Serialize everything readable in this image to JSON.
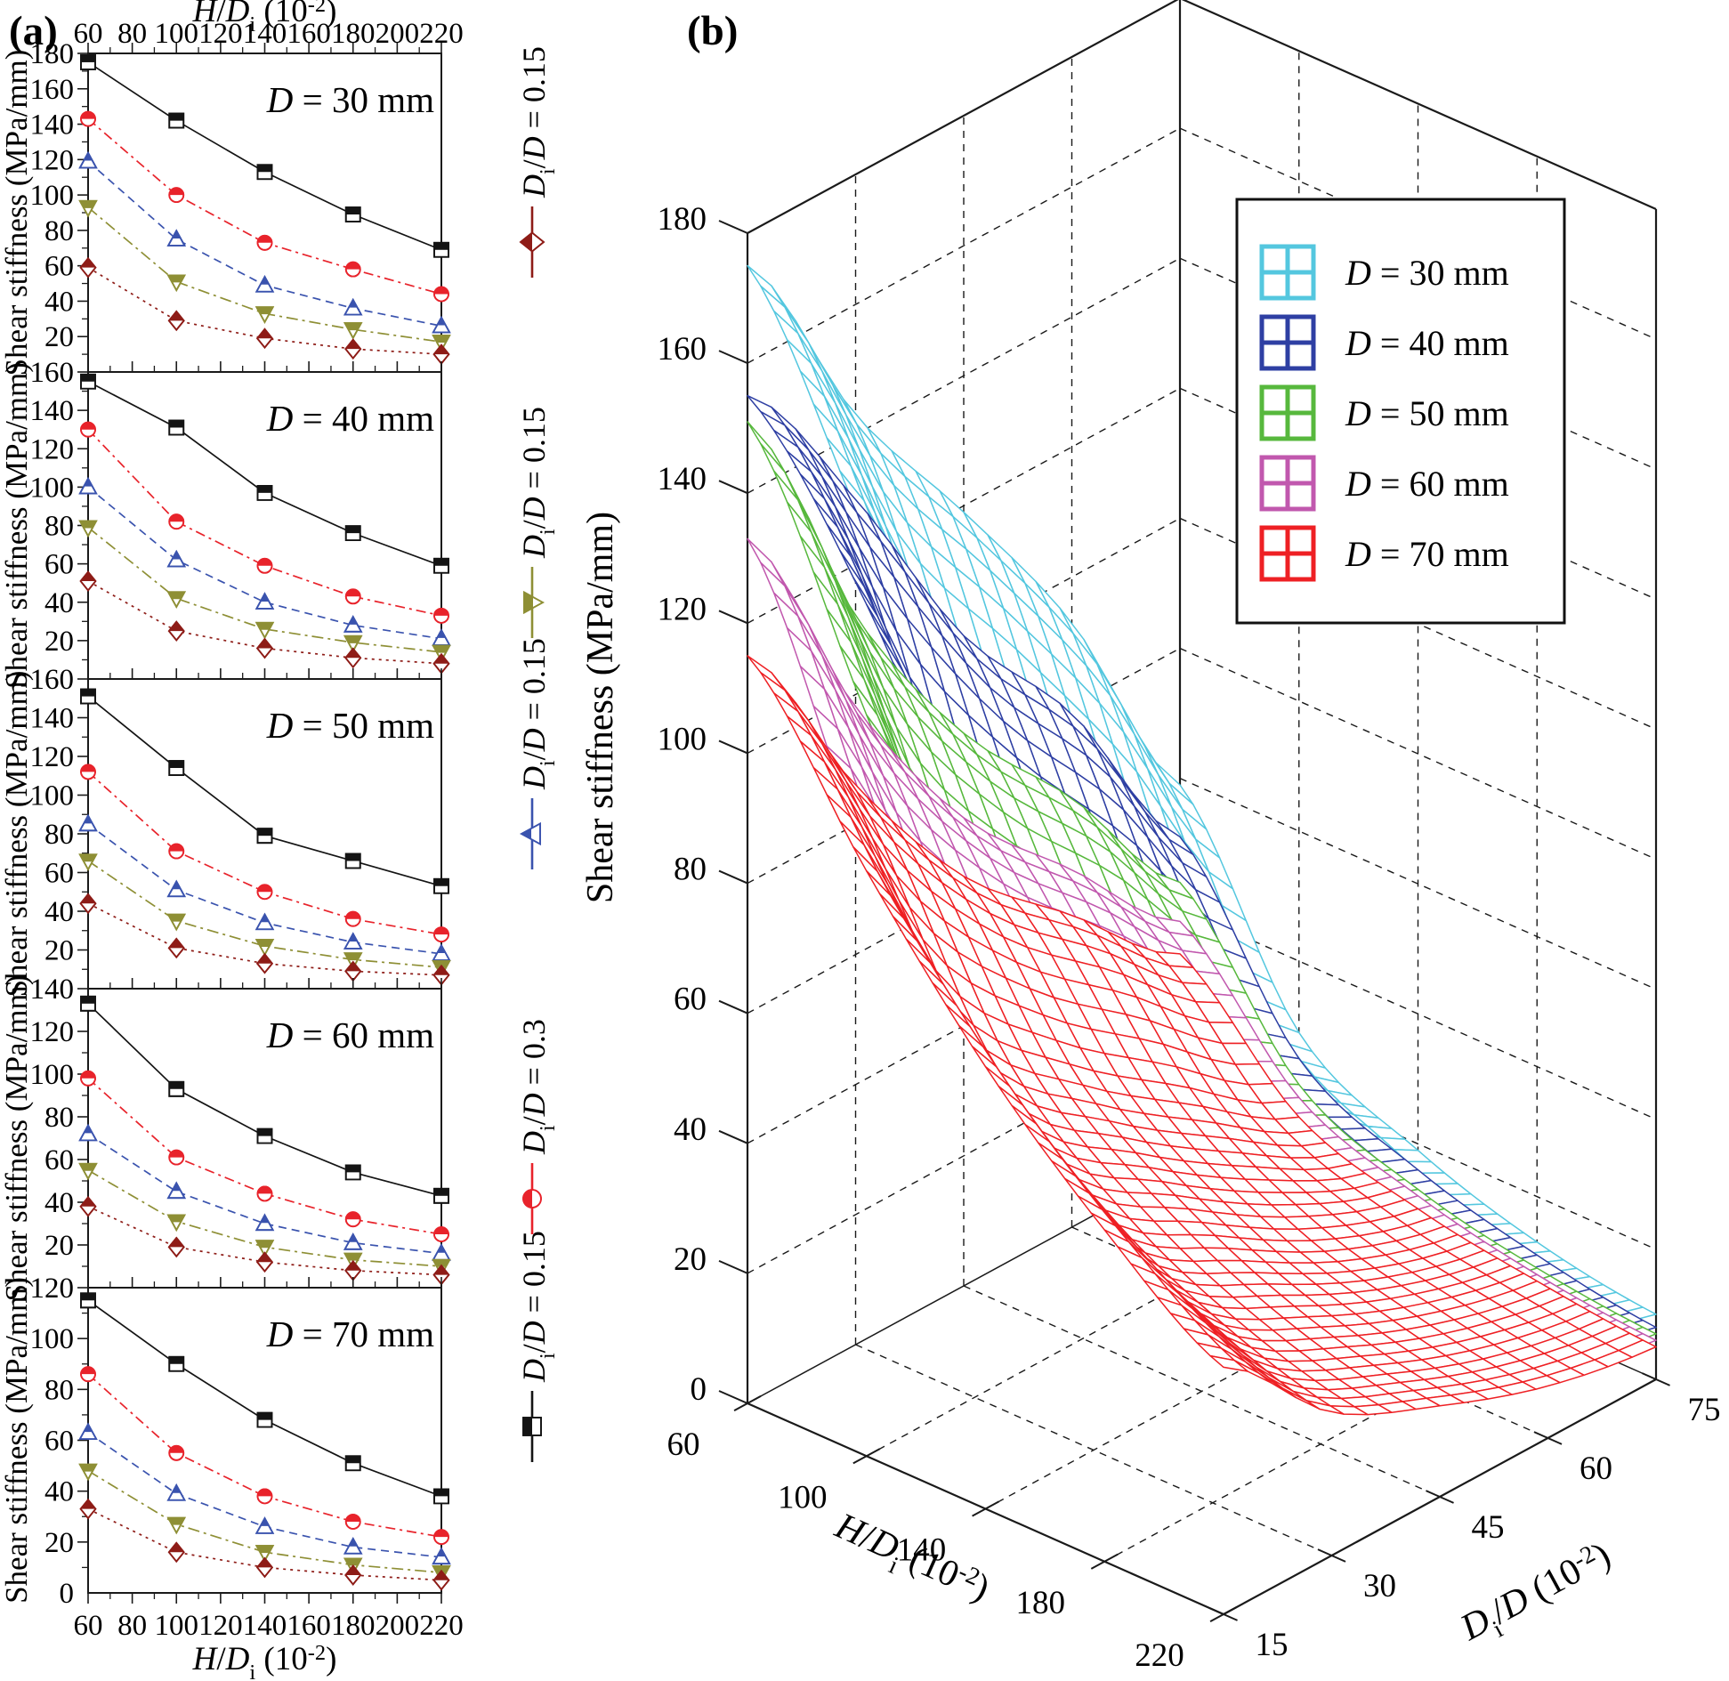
{
  "figure": {
    "panel_a_label": "(a)",
    "panel_b_label": "(b)"
  },
  "chart_data": [
    {
      "type": "line",
      "panel": "a",
      "x_label": "*H*/*D*_i_ (10^-2^)",
      "y_label": "Shear stiffness (MPa/mm)",
      "x": [
        60,
        100,
        140,
        180,
        220
      ],
      "x_tick_labels": [
        60,
        80,
        100,
        120,
        140,
        160,
        180,
        200,
        220
      ],
      "series": [
        {
          "id": "series-1",
          "marker": "square",
          "color": "#141414",
          "dash": "",
          "legend_label": "*D*_i_/*D* = 0.15"
        },
        {
          "id": "series-2",
          "marker": "circle",
          "color": "#e8232b",
          "dash": "11 5 3 5",
          "legend_label": "*D*_i_/*D* = 0.3"
        },
        {
          "id": "series-3",
          "marker": "triangle-up",
          "color": "#3a53ae",
          "dash": "9 6",
          "legend_label": "*D*_i_/*D* = 0.15"
        },
        {
          "id": "series-4",
          "marker": "triangle-down",
          "color": "#8e8f35",
          "dash": "13 5 3 5",
          "legend_label": "*D*_i_/*D* = 0.15"
        },
        {
          "id": "series-5",
          "marker": "diamond",
          "color": "#8e1c17",
          "dash": "3 5",
          "legend_label": "*D*_i_/*D* = 0.15"
        }
      ],
      "legend_display_order": [
        4,
        3,
        2,
        1,
        0
      ],
      "subplots": [
        {
          "title": "*D* = 30 mm",
          "ymax": 180,
          "y_tick_labels": [
            180,
            160,
            140,
            120,
            100,
            80,
            60,
            40,
            20
          ],
          "values": [
            [
              175,
              142,
              113,
              89,
              69
            ],
            [
              143,
              100,
              73,
              58,
              44
            ],
            [
              119,
              75,
              49,
              36,
              26
            ],
            [
              93,
              51,
              33,
              24,
              17
            ],
            [
              59,
              29,
              19,
              13,
              10
            ]
          ]
        },
        {
          "title": "*D* = 40 mm",
          "ymax": 160,
          "y_tick_labels": [
            160,
            140,
            120,
            100,
            80,
            60,
            40,
            20
          ],
          "values": [
            [
              155,
              131,
              97,
              76,
              59
            ],
            [
              130,
              82,
              59,
              43,
              33
            ],
            [
              100,
              62,
              40,
              28,
              21
            ],
            [
              79,
              42,
              26,
              19,
              14
            ],
            [
              51,
              25,
              16,
              11,
              8
            ]
          ]
        },
        {
          "title": "*D* = 50 mm",
          "ymax": 160,
          "y_tick_labels": [
            160,
            140,
            120,
            100,
            80,
            60,
            40,
            20
          ],
          "values": [
            [
              151,
              114,
              79,
              66,
              53
            ],
            [
              112,
              71,
              50,
              36,
              28
            ],
            [
              85,
              51,
              34,
              24,
              18
            ],
            [
              66,
              35,
              22,
              15,
              11
            ],
            [
              44,
              21,
              13,
              9,
              7
            ]
          ]
        },
        {
          "title": "*D* = 60 mm",
          "ymax": 140,
          "y_tick_labels": [
            140,
            120,
            100,
            80,
            60,
            40,
            20
          ],
          "values": [
            [
              133,
              93,
              71,
              54,
              43
            ],
            [
              98,
              61,
              44,
              32,
              25
            ],
            [
              72,
              45,
              30,
              21,
              16
            ],
            [
              55,
              31,
              19,
              13,
              10
            ],
            [
              38,
              19,
              12,
              8,
              6
            ]
          ]
        },
        {
          "title": "*D* = 70 mm",
          "ymax": 120,
          "y_tick_labels": [
            120,
            100,
            80,
            60,
            40,
            20,
            0
          ],
          "values": [
            [
              115,
              90,
              68,
              51,
              38
            ],
            [
              86,
              55,
              38,
              28,
              22
            ],
            [
              63,
              39,
              26,
              18,
              14
            ],
            [
              48,
              27,
              16,
              11,
              8
            ],
            [
              33,
              16,
              10,
              7,
              5
            ]
          ]
        }
      ]
    },
    {
      "type": "surface",
      "panel": "b",
      "x_label": "*H*/*D*_i_ (10^-2^)",
      "y_label": "*D*_i_/*D* (10^-2^)",
      "z_label": "Shear stiffness (MPa/mm)",
      "x": [
        60,
        100,
        140,
        180,
        220
      ],
      "y": [
        15,
        30,
        45,
        60,
        75
      ],
      "x_tick_labels": [
        60,
        100,
        140,
        180,
        220
      ],
      "y_tick_labels": [
        15,
        30,
        45,
        60,
        75
      ],
      "z_tick_labels": [
        0,
        20,
        40,
        60,
        80,
        100,
        120,
        140,
        160,
        180
      ],
      "zlim": [
        0,
        180
      ],
      "grid": "dashed",
      "legend_position": "upper-right-box",
      "surfaces": [
        {
          "name": "*D* = 30 mm",
          "color": "#54c7df",
          "z_values_from_subplot": 0
        },
        {
          "name": "*D* = 40 mm",
          "color": "#2e3fa3",
          "z_values_from_subplot": 1
        },
        {
          "name": "*D* = 50 mm",
          "color": "#57b83d",
          "z_values_from_subplot": 2
        },
        {
          "name": "*D* = 60 mm",
          "color": "#c158ae",
          "z_values_from_subplot": 3
        },
        {
          "name": "*D* = 70 mm",
          "color": "#ee2024",
          "z_values_from_subplot": 4
        }
      ]
    }
  ]
}
